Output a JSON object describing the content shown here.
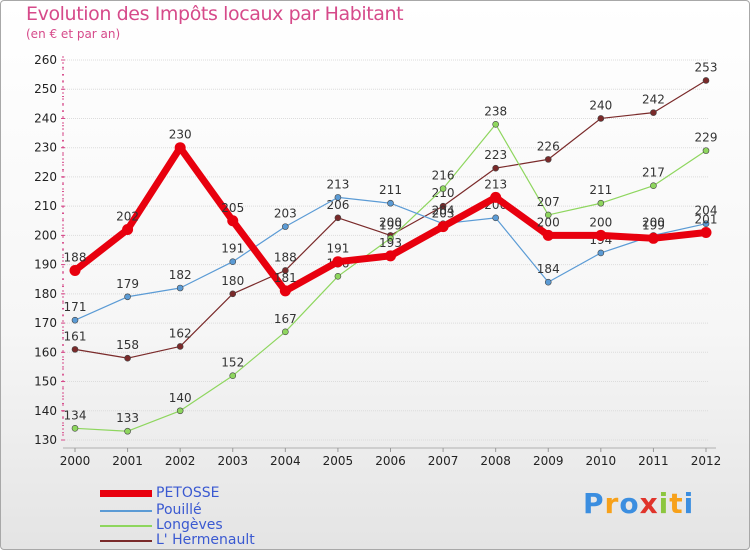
{
  "title": "Evolution des Impôts locaux par Habitant",
  "subtitle": "(en € et par an)",
  "logo": {
    "chars": [
      "P",
      "r",
      "o",
      "x",
      "i",
      "t",
      "i"
    ],
    "colors": [
      "#3b8ee0",
      "#f7a11a",
      "#3b8ee0",
      "#e0342b",
      "#8cc63f",
      "#f7a11a",
      "#3b8ee0"
    ]
  },
  "chart_data": {
    "type": "line",
    "title": "Evolution des Impôts locaux par Habitant",
    "ylabel": "(en € et par an)",
    "x": [
      "2000",
      "2001",
      "2002",
      "2003",
      "2004",
      "2005",
      "2006",
      "2007",
      "2008",
      "2009",
      "2010",
      "2011",
      "2012"
    ],
    "ylim": [
      130,
      260
    ],
    "yticks": [
      130,
      140,
      150,
      160,
      170,
      180,
      190,
      200,
      210,
      220,
      230,
      240,
      250,
      260
    ],
    "series": [
      {
        "name": "L' Hermenault",
        "color": "#7a2a2a",
        "width": 1.2,
        "values": [
          161,
          158,
          162,
          180,
          188,
          206,
          200,
          210,
          223,
          226,
          240,
          242,
          253
        ],
        "labels": [
          "161",
          "158",
          "162",
          "180",
          "188",
          "206",
          "200",
          "210",
          "223",
          "226",
          "240",
          "242",
          "253"
        ]
      },
      {
        "name": "Longèves",
        "color": "#8ed65e",
        "width": 1.2,
        "values": [
          134,
          133,
          140,
          152,
          167,
          186,
          199,
          216,
          238,
          207,
          211,
          217,
          229
        ],
        "labels": [
          "134",
          "133",
          "140",
          "152",
          "167",
          "186",
          "199",
          "216",
          "238",
          "207",
          "211",
          "217",
          "229"
        ]
      },
      {
        "name": "Pouillé",
        "color": "#5b9bd5",
        "width": 1.2,
        "values": [
          171,
          179,
          182,
          191,
          203,
          213,
          211,
          204,
          206,
          184,
          194,
          200,
          204
        ],
        "labels": [
          "171",
          "179",
          "182",
          "191",
          "203",
          "213",
          "211",
          "204",
          "206",
          "184",
          "194",
          "200",
          "204"
        ]
      },
      {
        "name": "PETOSSE",
        "color": "#e8000e",
        "width": 7,
        "values": [
          188,
          202,
          230,
          205,
          181,
          191,
          193,
          203,
          213,
          200,
          200,
          199,
          201
        ],
        "labels": [
          "188",
          "202",
          "230",
          "205",
          "181",
          "191",
          "193",
          "203",
          "213",
          "200",
          "200",
          "199",
          "201"
        ]
      }
    ],
    "legend": [
      "PETOSSE",
      "Pouillé",
      "Longèves",
      "L' Hermenault"
    ],
    "legend_position": "bottom-left",
    "grid": true
  }
}
